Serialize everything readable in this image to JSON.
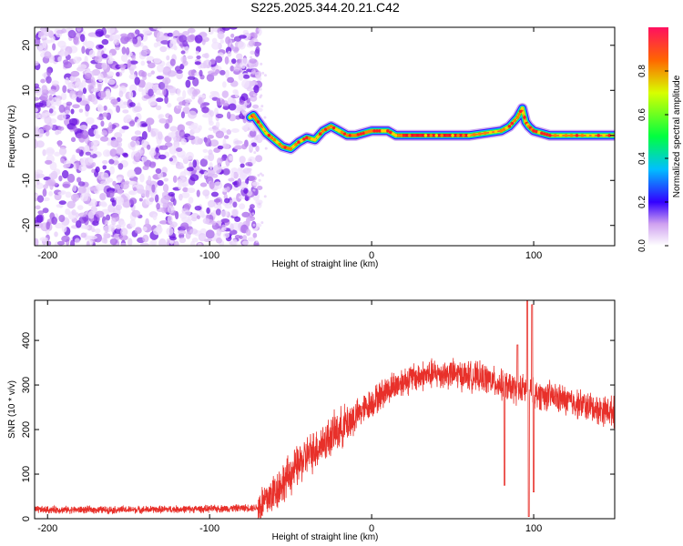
{
  "title": "S225.2025.344.20.21.C42",
  "chart_data": [
    {
      "type": "heatmap",
      "xlabel": "Height of straight line (km)",
      "ylabel": "Frequency (Hz)",
      "xlim": [
        -208,
        150
      ],
      "ylim": [
        -24.5,
        24
      ],
      "x_ticks": [
        -200,
        -100,
        0,
        100
      ],
      "y_ticks": [
        -20,
        -10,
        0,
        10,
        20
      ],
      "noise_region_end_km": -75,
      "ridge_track": {
        "x": [
          -75,
          -73,
          -70,
          -65,
          -60,
          -55,
          -50,
          -45,
          -40,
          -35,
          -30,
          -25,
          -20,
          -15,
          -10,
          -5,
          0,
          5,
          10,
          15,
          20,
          30,
          40,
          50,
          60,
          70,
          80,
          85,
          90,
          93,
          95,
          97,
          100,
          105,
          110,
          120,
          130,
          140,
          150
        ],
        "y": [
          4,
          4.5,
          3,
          0.5,
          -1,
          -2.5,
          -3,
          -1.5,
          -0.5,
          -1,
          1,
          2,
          1,
          0,
          0,
          0.5,
          1,
          1,
          1,
          0,
          0,
          0,
          0,
          0,
          0,
          0.5,
          1,
          2,
          4,
          6,
          3,
          2,
          1,
          0.5,
          0,
          0,
          0,
          0,
          0
        ]
      },
      "colorbar": {
        "label": "Normalized spectral amplitude",
        "range": [
          0,
          1
        ],
        "ticks": [
          "0.0",
          "0.2",
          "0.4",
          "0.6",
          "0.8"
        ]
      }
    },
    {
      "type": "line",
      "xlabel": "Height of straight line (km)",
      "ylabel": "SNR (10 * v/v)",
      "xlim": [
        -208,
        150
      ],
      "ylim": [
        0,
        490
      ],
      "x_ticks": [
        -200,
        -100,
        0,
        100
      ],
      "y_ticks": [
        0,
        100,
        200,
        300,
        400
      ],
      "series": [
        {
          "name": "SNR",
          "color": "#e8302a",
          "envelope_x": [
            -208,
            -150,
            -100,
            -70,
            -60,
            -50,
            -40,
            -30,
            -20,
            -10,
            0,
            10,
            20,
            30,
            40,
            50,
            60,
            70,
            80,
            90,
            95,
            100,
            110,
            120,
            130,
            140,
            150
          ],
          "envelope_y": [
            20,
            20,
            22,
            25,
            60,
            100,
            140,
            170,
            200,
            230,
            260,
            290,
            310,
            320,
            325,
            325,
            320,
            315,
            300,
            290,
            290,
            280,
            275,
            265,
            255,
            245,
            240
          ],
          "spikes": [
            {
              "x": 82,
              "value": 75
            },
            {
              "x": 90,
              "value": 390
            },
            {
              "x": 96,
              "value": 490
            },
            {
              "x": 97,
              "value": 5
            },
            {
              "x": 99,
              "value": 480
            },
            {
              "x": 100,
              "value": 60
            }
          ]
        }
      ]
    }
  ]
}
